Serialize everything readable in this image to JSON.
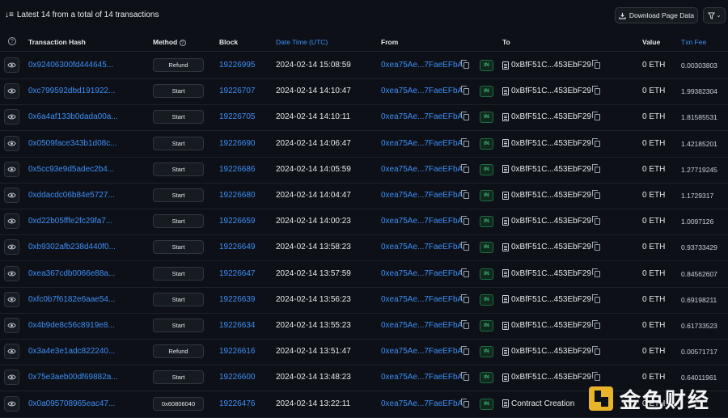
{
  "summary": "Latest 14 from a total of 14 transactions",
  "download_label": "Download Page Data",
  "headers": {
    "hash": "Transaction Hash",
    "method": "Method",
    "block": "Block",
    "datetime": "Date Time (UTC)",
    "from": "From",
    "to": "To",
    "value": "Value",
    "fee": "Txn Fee"
  },
  "rows": [
    {
      "hash": "0x92406300fd444645...",
      "method": "Refund",
      "block": "19226995",
      "date": "2024-02-14 15:08:59",
      "from": "0xea75Ae...7FaeEFbA",
      "dir": "IN",
      "to": "0xBfF51C...453EbF29",
      "value": "0 ETH",
      "fee": "0.00303803"
    },
    {
      "hash": "0xc799592dbd191922...",
      "method": "Start",
      "block": "19226707",
      "date": "2024-02-14 14:10:47",
      "from": "0xea75Ae...7FaeEFbA",
      "dir": "IN",
      "to": "0xBfF51C...453EbF29",
      "value": "0 ETH",
      "fee": "1.99382304"
    },
    {
      "hash": "0x6a4af133b0dada00a...",
      "method": "Start",
      "block": "19226705",
      "date": "2024-02-14 14:10:11",
      "from": "0xea75Ae...7FaeEFbA",
      "dir": "IN",
      "to": "0xBfF51C...453EbF29",
      "value": "0 ETH",
      "fee": "1.81585531"
    },
    {
      "hash": "0x0509face343b1d08c...",
      "method": "Start",
      "block": "19226690",
      "date": "2024-02-14 14:06:47",
      "from": "0xea75Ae...7FaeEFbA",
      "dir": "IN",
      "to": "0xBfF51C...453EbF29",
      "value": "0 ETH",
      "fee": "1.42185201"
    },
    {
      "hash": "0x5cc93e9d5adec2b4...",
      "method": "Start",
      "block": "19226686",
      "date": "2024-02-14 14:05:59",
      "from": "0xea75Ae...7FaeEFbA",
      "dir": "IN",
      "to": "0xBfF51C...453EbF29",
      "value": "0 ETH",
      "fee": "1.27719245"
    },
    {
      "hash": "0xddacdc06b84e5727...",
      "method": "Start",
      "block": "19226680",
      "date": "2024-02-14 14:04:47",
      "from": "0xea75Ae...7FaeEFbA",
      "dir": "IN",
      "to": "0xBfF51C...453EbF29",
      "value": "0 ETH",
      "fee": "1.1729317"
    },
    {
      "hash": "0xd22b05fffe2fc29fa7...",
      "method": "Start",
      "block": "19226659",
      "date": "2024-02-14 14:00:23",
      "from": "0xea75Ae...7FaeEFbA",
      "dir": "IN",
      "to": "0xBfF51C...453EbF29",
      "value": "0 ETH",
      "fee": "1.0097126"
    },
    {
      "hash": "0xb9302afb238d440f0...",
      "method": "Start",
      "block": "19226649",
      "date": "2024-02-14 13:58:23",
      "from": "0xea75Ae...7FaeEFbA",
      "dir": "IN",
      "to": "0xBfF51C...453EbF29",
      "value": "0 ETH",
      "fee": "0.93733429"
    },
    {
      "hash": "0xea367cdb0066e88a...",
      "method": "Start",
      "block": "19226647",
      "date": "2024-02-14 13:57:59",
      "from": "0xea75Ae...7FaeEFbA",
      "dir": "IN",
      "to": "0xBfF51C...453EbF29",
      "value": "0 ETH",
      "fee": "0.84562607"
    },
    {
      "hash": "0xfc0b7f6182e6aae54...",
      "method": "Start",
      "block": "19226639",
      "date": "2024-02-14 13:56:23",
      "from": "0xea75Ae...7FaeEFbA",
      "dir": "IN",
      "to": "0xBfF51C...453EbF29",
      "value": "0 ETH",
      "fee": "0.69198211"
    },
    {
      "hash": "0x4b9de8c56c8919e8...",
      "method": "Start",
      "block": "19226634",
      "date": "2024-02-14 13:55:23",
      "from": "0xea75Ae...7FaeEFbA",
      "dir": "IN",
      "to": "0xBfF51C...453EbF29",
      "value": "0 ETH",
      "fee": "0.61733523"
    },
    {
      "hash": "0x3a4e3e1adc822240...",
      "method": "Refund",
      "block": "19226616",
      "date": "2024-02-14 13:51:47",
      "from": "0xea75Ae...7FaeEFbA",
      "dir": "IN",
      "to": "0xBfF51C...453EbF29",
      "value": "0 ETH",
      "fee": "0.00571717"
    },
    {
      "hash": "0x75e3aeb00df69882a...",
      "method": "Start",
      "block": "19226600",
      "date": "2024-02-14 13:48:23",
      "from": "0xea75Ae...7FaeEFbA",
      "dir": "IN",
      "to": "0xBfF51C...453EbF29",
      "value": "0 ETH",
      "fee": "0.64011961"
    },
    {
      "hash": "0x0a095708965eac47...",
      "method": "0x60806040",
      "block": "19226476",
      "date": "2024-02-14 13:22:11",
      "from": "0xea75Ae...7FaeEFbA",
      "dir": "IN",
      "to": "Contract Creation",
      "value": "0 ETH",
      "fee": ""
    }
  ],
  "watermark": "金色财经",
  "colors": {
    "background": "#0d1117",
    "link": "#3e8ef7",
    "in_badge": "#3fb97a",
    "watermark_logo": "#e8b429"
  }
}
